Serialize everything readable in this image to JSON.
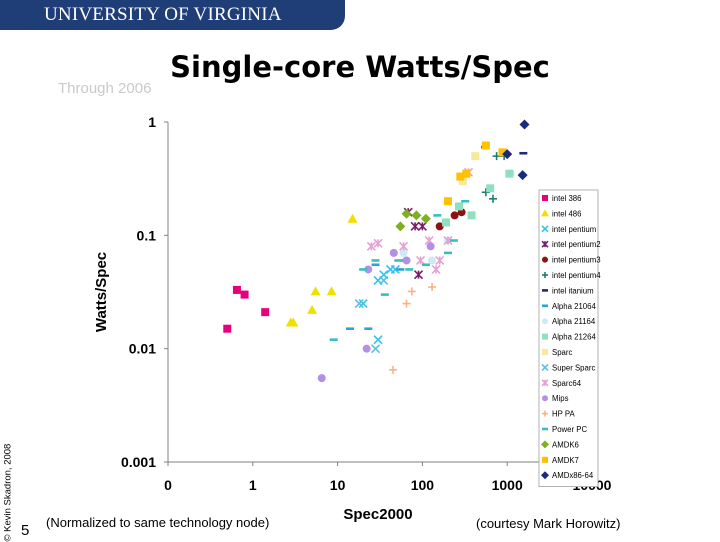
{
  "header": {
    "university": "UNIVERSITY OF VIRGINIA",
    "ghost_text": "Through 2006"
  },
  "slide": {
    "title": "Single-core Watts/Spec",
    "copyright": "© Kevin Skadron, 2008",
    "number": "5",
    "footnote_left": "(Normalized to same technology node)",
    "footnote_right": "(courtesy Mark Horowitz)"
  },
  "chart_data": {
    "type": "scatter",
    "xlabel": "Spec2000",
    "ylabel": "Watts/Spec",
    "x_scale": "log",
    "y_scale": "log",
    "xlim": [
      0.1,
      10000
    ],
    "ylim": [
      0.001,
      1
    ],
    "x_ticks": [
      {
        "value": 0.1,
        "label": "0"
      },
      {
        "value": 1,
        "label": "1"
      },
      {
        "value": 10,
        "label": "10"
      },
      {
        "value": 100,
        "label": "100"
      },
      {
        "value": 1000,
        "label": "1000"
      },
      {
        "value": 10000,
        "label": "10000"
      }
    ],
    "y_ticks": [
      {
        "value": 1,
        "label": "1"
      },
      {
        "value": 0.1,
        "label": "0.1"
      },
      {
        "value": 0.01,
        "label": "0.01"
      },
      {
        "value": 0.001,
        "label": "0.001"
      }
    ],
    "grid": false,
    "legend_position": "right",
    "series": [
      {
        "name": "intel 386",
        "color": "#e6007e",
        "marker": "square",
        "points": [
          [
            0.5,
            0.015
          ],
          [
            0.65,
            0.033
          ],
          [
            0.8,
            0.03
          ],
          [
            1.4,
            0.021
          ]
        ]
      },
      {
        "name": "intel 486",
        "color": "#f0e000",
        "marker": "triangle",
        "points": [
          [
            2.8,
            0.017
          ],
          [
            3,
            0.017
          ],
          [
            5,
            0.022
          ],
          [
            5.5,
            0.032
          ],
          [
            8.5,
            0.032
          ],
          [
            15,
            0.14
          ]
        ]
      },
      {
        "name": "intel pentium",
        "color": "#33c3ee",
        "marker": "x",
        "points": [
          [
            20,
            0.025
          ],
          [
            30,
            0.012
          ],
          [
            30,
            0.04
          ],
          [
            35,
            0.045
          ],
          [
            42,
            0.05
          ],
          [
            48,
            0.05
          ]
        ]
      },
      {
        "name": "intel pentium2",
        "color": "#7a1a6a",
        "marker": "star",
        "points": [
          [
            68,
            0.16
          ],
          [
            82,
            0.12
          ],
          [
            90,
            0.045
          ],
          [
            100,
            0.12
          ]
        ]
      },
      {
        "name": "intel pentium3",
        "color": "#8a1212",
        "marker": "circle",
        "points": [
          [
            160,
            0.12
          ],
          [
            240,
            0.15
          ],
          [
            290,
            0.16
          ]
        ]
      },
      {
        "name": "intel pentium4",
        "color": "#1f7c6e",
        "marker": "plus",
        "points": [
          [
            560,
            0.24
          ],
          [
            680,
            0.21
          ],
          [
            750,
            0.5
          ],
          [
            920,
            0.5
          ]
        ]
      },
      {
        "name": "intel itanium",
        "color": "#1f2d6e",
        "marker": "dash",
        "points": [
          [
            550,
            0.6
          ],
          [
            1550,
            0.53
          ]
        ]
      },
      {
        "name": "Alpha 21064",
        "color": "#2aa4d9",
        "marker": "dash",
        "points": [
          [
            14,
            0.015
          ],
          [
            23,
            0.015
          ],
          [
            28,
            0.055
          ],
          [
            55,
            0.05
          ],
          [
            62,
            0.06
          ]
        ]
      },
      {
        "name": "Alpha 21164",
        "color": "#cde9f3",
        "marker": "circle",
        "points": [
          [
            60,
            0.07
          ],
          [
            130,
            0.06
          ],
          [
            200,
            0.09
          ],
          [
            1100,
            0.35
          ]
        ]
      },
      {
        "name": "Alpha 21264",
        "color": "#8ee0c0",
        "marker": "square",
        "points": [
          [
            270,
            0.18
          ],
          [
            380,
            0.15
          ],
          [
            630,
            0.26
          ],
          [
            1060,
            0.35
          ],
          [
            190,
            0.13
          ]
        ]
      },
      {
        "name": "Sparc",
        "color": "#f7e8a0",
        "marker": "square",
        "points": [
          [
            420,
            0.5
          ],
          [
            300,
            0.3
          ]
        ]
      },
      {
        "name": "Super Sparc",
        "color": "#5bc0de",
        "marker": "x",
        "points": [
          [
            18,
            0.025
          ],
          [
            28,
            0.01
          ],
          [
            35,
            0.04
          ]
        ]
      },
      {
        "name": "Sparc64",
        "color": "#e6a0d2",
        "marker": "star",
        "points": [
          [
            25,
            0.08
          ],
          [
            30,
            0.085
          ],
          [
            60,
            0.08
          ],
          [
            95,
            0.06
          ],
          [
            120,
            0.09
          ],
          [
            145,
            0.05
          ],
          [
            160,
            0.06
          ],
          [
            200,
            0.09
          ],
          [
            350,
            0.36
          ]
        ]
      },
      {
        "name": "Mips",
        "color": "#b48fe6",
        "marker": "circle",
        "points": [
          [
            6.5,
            0.0055
          ],
          [
            22,
            0.01
          ],
          [
            23,
            0.05
          ],
          [
            46,
            0.07
          ],
          [
            65,
            0.06
          ],
          [
            125,
            0.08
          ]
        ]
      },
      {
        "name": "HP PA",
        "color": "#f8b384",
        "marker": "plus",
        "points": [
          [
            45,
            0.0065
          ],
          [
            65,
            0.025
          ],
          [
            75,
            0.032
          ],
          [
            130,
            0.035
          ]
        ]
      },
      {
        "name": "Power PC",
        "color": "#37bfbf",
        "marker": "dash",
        "points": [
          [
            9,
            0.012
          ],
          [
            20,
            0.05
          ],
          [
            28,
            0.06
          ],
          [
            36,
            0.03
          ],
          [
            52,
            0.06
          ],
          [
            70,
            0.05
          ],
          [
            110,
            0.055
          ],
          [
            150,
            0.15
          ],
          [
            200,
            0.07
          ],
          [
            235,
            0.09
          ],
          [
            320,
            0.2
          ]
        ]
      },
      {
        "name": "AMDK6",
        "color": "#7eb022",
        "marker": "diamond",
        "points": [
          [
            55,
            0.12
          ],
          [
            65,
            0.155
          ],
          [
            85,
            0.15
          ],
          [
            110,
            0.14
          ]
        ]
      },
      {
        "name": "AMDK7",
        "color": "#ffc000",
        "marker": "square",
        "points": [
          [
            200,
            0.2
          ],
          [
            280,
            0.33
          ],
          [
            330,
            0.35
          ],
          [
            560,
            0.62
          ],
          [
            880,
            0.54
          ]
        ]
      },
      {
        "name": "AMDx86-64",
        "color": "#1a2a80",
        "marker": "diamond",
        "points": [
          [
            1000,
            0.52
          ],
          [
            1600,
            0.95
          ],
          [
            1520,
            0.34
          ]
        ]
      }
    ]
  }
}
